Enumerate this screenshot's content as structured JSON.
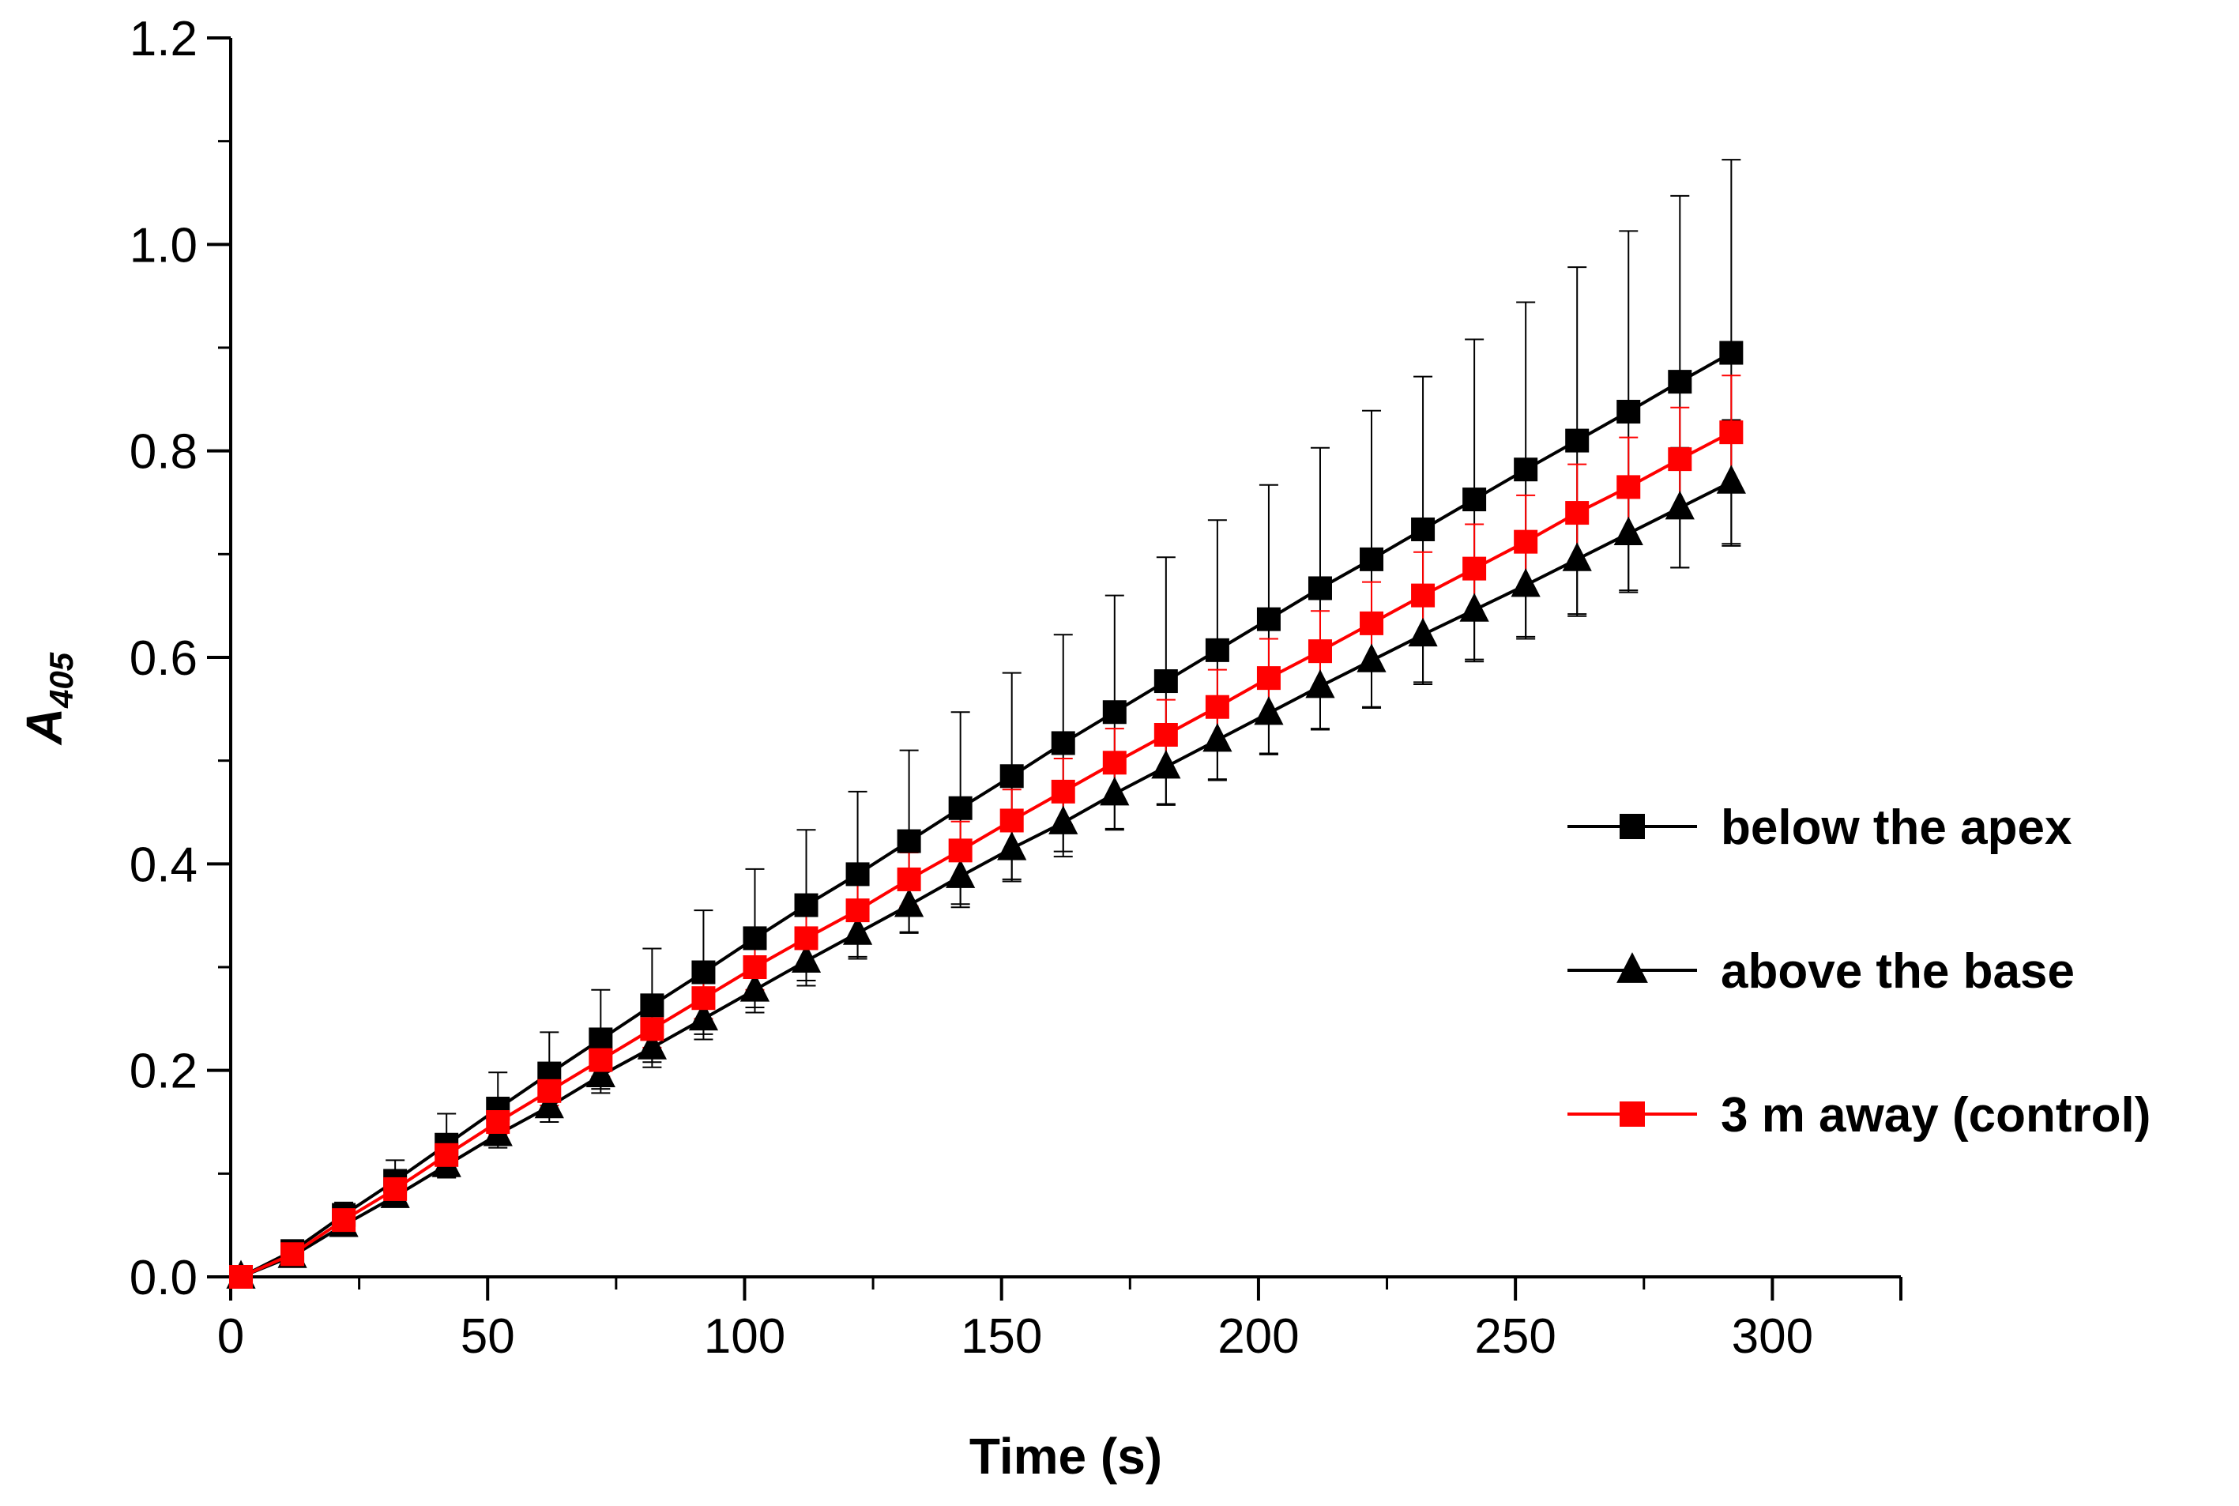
{
  "chart_data": {
    "type": "line",
    "title": "",
    "xlabel": "Time (s)",
    "ylabel_main": "A",
    "ylabel_sub": "405",
    "xlim": [
      0,
      325
    ],
    "ylim": [
      0,
      1.2
    ],
    "xticks": [
      0,
      50,
      100,
      150,
      200,
      250,
      300
    ],
    "xtick_labels": [
      "0",
      "50",
      "100",
      "150",
      "200",
      "250",
      "300"
    ],
    "yticks": [
      0,
      0.2,
      0.4,
      0.6,
      0.8,
      1.0,
      1.2
    ],
    "ytick_labels": [
      "0.0",
      "0.2",
      "0.4",
      "0.6",
      "0.8",
      "1.0",
      "1.2"
    ],
    "grid": false,
    "legend_position": "right",
    "x": [
      2,
      12,
      22,
      32,
      42,
      52,
      62,
      72,
      82,
      92,
      102,
      112,
      122,
      132,
      142,
      152,
      162,
      172,
      182,
      192,
      202,
      212,
      222,
      232,
      242,
      252,
      262,
      272,
      282,
      292
    ],
    "series": [
      {
        "name": "below the apex",
        "color": "#000000",
        "marker": "square",
        "values": [
          0.0,
          0.025,
          0.06,
          0.093,
          0.128,
          0.163,
          0.197,
          0.23,
          0.263,
          0.295,
          0.328,
          0.36,
          0.39,
          0.422,
          0.454,
          0.485,
          0.517,
          0.547,
          0.577,
          0.607,
          0.637,
          0.667,
          0.695,
          0.724,
          0.753,
          0.782,
          0.81,
          0.838,
          0.867,
          0.895
        ],
        "errors": [
          0.002,
          0.008,
          0.012,
          0.02,
          0.03,
          0.035,
          0.04,
          0.048,
          0.055,
          0.06,
          0.067,
          0.073,
          0.08,
          0.088,
          0.093,
          0.1,
          0.105,
          0.113,
          0.12,
          0.126,
          0.13,
          0.136,
          0.144,
          0.148,
          0.155,
          0.162,
          0.168,
          0.175,
          0.18,
          0.187
        ]
      },
      {
        "name": "above the base",
        "color": "#000000",
        "marker": "triangle",
        "values": [
          0.0,
          0.02,
          0.05,
          0.078,
          0.108,
          0.138,
          0.165,
          0.195,
          0.222,
          0.25,
          0.278,
          0.306,
          0.333,
          0.36,
          0.388,
          0.415,
          0.44,
          0.468,
          0.494,
          0.52,
          0.546,
          0.572,
          0.597,
          0.622,
          0.646,
          0.67,
          0.695,
          0.72,
          0.745,
          0.77
        ],
        "errors": [
          0.001,
          0.006,
          0.008,
          0.01,
          0.012,
          0.013,
          0.015,
          0.017,
          0.019,
          0.02,
          0.022,
          0.024,
          0.025,
          0.027,
          0.03,
          0.032,
          0.033,
          0.035,
          0.036,
          0.038,
          0.04,
          0.042,
          0.045,
          0.048,
          0.05,
          0.052,
          0.055,
          0.055,
          0.058,
          0.06
        ]
      },
      {
        "name": "3 m away (control)",
        "color": "#ff0000",
        "marker": "square",
        "values": [
          0.0,
          0.022,
          0.055,
          0.085,
          0.118,
          0.15,
          0.18,
          0.21,
          0.24,
          0.27,
          0.3,
          0.328,
          0.355,
          0.385,
          0.413,
          0.442,
          0.47,
          0.498,
          0.525,
          0.552,
          0.58,
          0.606,
          0.633,
          0.66,
          0.686,
          0.712,
          0.74,
          0.765,
          0.792,
          0.818
        ],
        "errors": [
          0.001,
          0.004,
          0.006,
          0.008,
          0.01,
          0.012,
          0.014,
          0.016,
          0.018,
          0.02,
          0.022,
          0.024,
          0.025,
          0.026,
          0.028,
          0.03,
          0.032,
          0.033,
          0.034,
          0.036,
          0.038,
          0.039,
          0.04,
          0.042,
          0.043,
          0.045,
          0.047,
          0.048,
          0.05,
          0.055
        ]
      }
    ]
  }
}
